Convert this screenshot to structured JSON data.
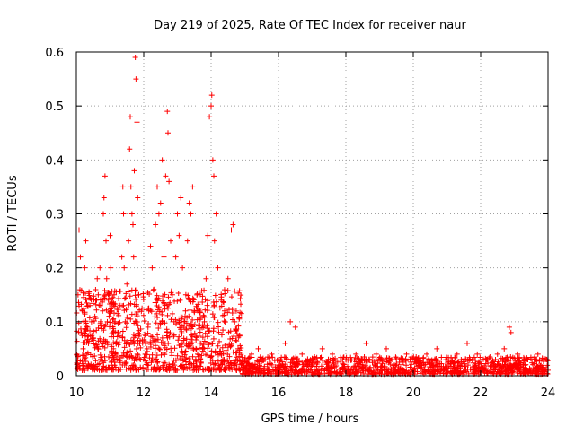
{
  "chart_data": {
    "type": "scatter",
    "title": "Day 219 of 2025, Rate Of TEC Index for receiver naur",
    "xlabel": "GPS time / hours",
    "ylabel": "ROTI / TECUs",
    "xlim": [
      10,
      24
    ],
    "ylim": [
      0,
      0.6
    ],
    "xticks": [
      10,
      12,
      14,
      16,
      18,
      20,
      22,
      24
    ],
    "yticks": [
      0,
      0.1,
      0.2,
      0.3,
      0.4,
      0.5,
      0.6
    ],
    "xtick_labels": [
      "10",
      "12",
      "14",
      "16",
      "18",
      "20",
      "22",
      "24"
    ],
    "ytick_labels": [
      "0",
      "0.1",
      "0.2",
      "0.3",
      "0.4",
      "0.5",
      "0.6"
    ],
    "grid": true,
    "marker": "plus",
    "series_color": "#ff0000",
    "points": [
      [
        10.05,
        0.15
      ],
      [
        10.08,
        0.27
      ],
      [
        10.12,
        0.22
      ],
      [
        10.15,
        0.08
      ],
      [
        10.18,
        0.12
      ],
      [
        10.2,
        0.05
      ],
      [
        10.22,
        0.1
      ],
      [
        10.25,
        0.2
      ],
      [
        10.28,
        0.25
      ],
      [
        10.3,
        0.04
      ],
      [
        10.33,
        0.09
      ],
      [
        10.36,
        0.06
      ],
      [
        10.4,
        0.13
      ],
      [
        10.45,
        0.1
      ],
      [
        10.5,
        0.07
      ],
      [
        10.55,
        0.11
      ],
      [
        10.6,
        0.14
      ],
      [
        10.62,
        0.18
      ],
      [
        10.65,
        0.15
      ],
      [
        10.7,
        0.2
      ],
      [
        10.72,
        0.1
      ],
      [
        10.75,
        0.06
      ],
      [
        10.78,
        0.12
      ],
      [
        10.8,
        0.3
      ],
      [
        10.82,
        0.33
      ],
      [
        10.85,
        0.37
      ],
      [
        10.88,
        0.25
      ],
      [
        10.9,
        0.18
      ],
      [
        10.92,
        0.1
      ],
      [
        10.95,
        0.14
      ],
      [
        11.0,
        0.26
      ],
      [
        11.02,
        0.2
      ],
      [
        11.05,
        0.12
      ],
      [
        11.08,
        0.08
      ],
      [
        11.1,
        0.05
      ],
      [
        11.12,
        0.15
      ],
      [
        11.15,
        0.1
      ],
      [
        11.2,
        0.04
      ],
      [
        11.25,
        0.08
      ],
      [
        11.3,
        0.13
      ],
      [
        11.35,
        0.22
      ],
      [
        11.38,
        0.35
      ],
      [
        11.4,
        0.3
      ],
      [
        11.42,
        0.2
      ],
      [
        11.45,
        0.1
      ],
      [
        11.5,
        0.17
      ],
      [
        11.55,
        0.25
      ],
      [
        11.58,
        0.42
      ],
      [
        11.6,
        0.48
      ],
      [
        11.62,
        0.35
      ],
      [
        11.65,
        0.3
      ],
      [
        11.68,
        0.28
      ],
      [
        11.7,
        0.22
      ],
      [
        11.72,
        0.38
      ],
      [
        11.75,
        0.59
      ],
      [
        11.77,
        0.55
      ],
      [
        11.8,
        0.47
      ],
      [
        11.82,
        0.33
      ],
      [
        11.85,
        0.15
      ],
      [
        11.88,
        0.06
      ],
      [
        11.9,
        0.03
      ],
      [
        12.1,
        0.05
      ],
      [
        12.15,
        0.12
      ],
      [
        12.2,
        0.24
      ],
      [
        12.25,
        0.2
      ],
      [
        12.3,
        0.16
      ],
      [
        12.35,
        0.28
      ],
      [
        12.4,
        0.35
      ],
      [
        12.45,
        0.3
      ],
      [
        12.5,
        0.32
      ],
      [
        12.55,
        0.4
      ],
      [
        12.6,
        0.22
      ],
      [
        12.65,
        0.37
      ],
      [
        12.7,
        0.49
      ],
      [
        12.72,
        0.45
      ],
      [
        12.75,
        0.36
      ],
      [
        12.8,
        0.25
      ],
      [
        12.85,
        0.15
      ],
      [
        12.9,
        0.1
      ],
      [
        12.95,
        0.22
      ],
      [
        13.0,
        0.3
      ],
      [
        13.05,
        0.26
      ],
      [
        13.1,
        0.33
      ],
      [
        13.15,
        0.2
      ],
      [
        13.2,
        0.1
      ],
      [
        13.25,
        0.15
      ],
      [
        13.3,
        0.25
      ],
      [
        13.35,
        0.32
      ],
      [
        13.4,
        0.3
      ],
      [
        13.45,
        0.35
      ],
      [
        13.5,
        0.12
      ],
      [
        13.55,
        0.05
      ],
      [
        13.6,
        0.04
      ],
      [
        13.7,
        0.06
      ],
      [
        13.8,
        0.1
      ],
      [
        13.85,
        0.18
      ],
      [
        13.9,
        0.26
      ],
      [
        13.95,
        0.48
      ],
      [
        14.0,
        0.5
      ],
      [
        14.02,
        0.52
      ],
      [
        14.05,
        0.4
      ],
      [
        14.08,
        0.37
      ],
      [
        14.1,
        0.25
      ],
      [
        14.15,
        0.3
      ],
      [
        14.2,
        0.2
      ],
      [
        14.3,
        0.14
      ],
      [
        14.4,
        0.12
      ],
      [
        14.5,
        0.18
      ],
      [
        14.6,
        0.27
      ],
      [
        14.65,
        0.28
      ],
      [
        14.7,
        0.1
      ],
      [
        14.8,
        0.05
      ],
      [
        15.0,
        0.03
      ],
      [
        15.2,
        0.04
      ],
      [
        15.4,
        0.05
      ],
      [
        15.6,
        0.03
      ],
      [
        15.8,
        0.04
      ],
      [
        16.0,
        0.03
      ],
      [
        16.2,
        0.06
      ],
      [
        16.35,
        0.1
      ],
      [
        16.5,
        0.09
      ],
      [
        16.7,
        0.04
      ],
      [
        17.0,
        0.03
      ],
      [
        17.3,
        0.05
      ],
      [
        17.6,
        0.04
      ],
      [
        18.0,
        0.03
      ],
      [
        18.3,
        0.04
      ],
      [
        18.6,
        0.06
      ],
      [
        18.9,
        0.04
      ],
      [
        19.2,
        0.05
      ],
      [
        19.5,
        0.03
      ],
      [
        19.8,
        0.04
      ],
      [
        20.1,
        0.03
      ],
      [
        20.4,
        0.04
      ],
      [
        20.7,
        0.05
      ],
      [
        21.0,
        0.03
      ],
      [
        21.3,
        0.04
      ],
      [
        21.6,
        0.06
      ],
      [
        21.9,
        0.04
      ],
      [
        22.2,
        0.03
      ],
      [
        22.5,
        0.04
      ],
      [
        22.7,
        0.05
      ],
      [
        22.85,
        0.09
      ],
      [
        22.9,
        0.08
      ],
      [
        23.1,
        0.04
      ],
      [
        23.4,
        0.03
      ],
      [
        23.7,
        0.04
      ],
      [
        23.95,
        0.03
      ]
    ],
    "noise_bands": [
      {
        "x_from": 10.0,
        "x_to": 14.9,
        "y_min": 0.01,
        "y_max": 0.16,
        "count": 900
      },
      {
        "x_from": 14.9,
        "x_to": 24.0,
        "y_min": 0.003,
        "y_max": 0.035,
        "count": 1100
      }
    ]
  }
}
